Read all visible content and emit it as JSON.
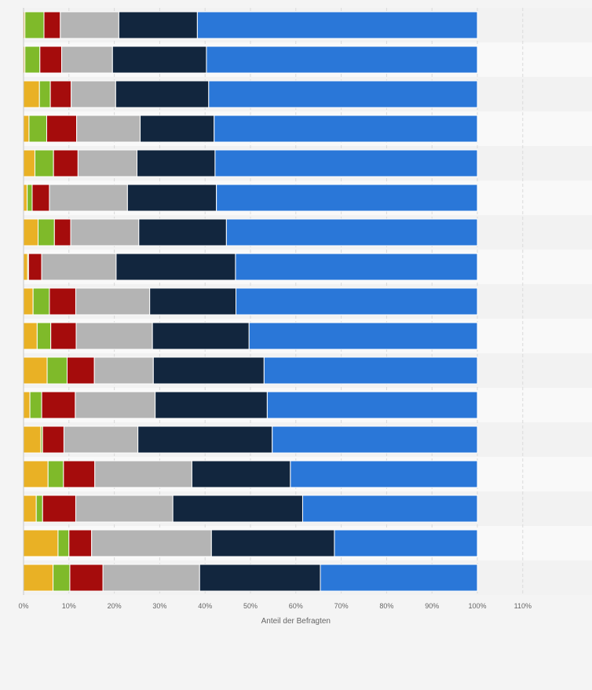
{
  "chart_data": {
    "type": "bar",
    "orientation": "horizontal",
    "stacked": true,
    "percent_stacked": true,
    "categories": [
      "",
      "",
      "",
      "",
      "",
      "",
      "",
      "",
      "",
      "",
      "",
      "",
      "",
      "",
      "",
      "",
      ""
    ],
    "series": [
      {
        "color": "#e9b125",
        "values": [
          0.3,
          0.3,
          3.5,
          1.2,
          2.5,
          0.8,
          3.2,
          0.9,
          2.1,
          3.0,
          5.2,
          1.4,
          3.8,
          5.4,
          2.8,
          7.6,
          6.5
        ]
      },
      {
        "color": "#7fba2a",
        "values": [
          4.2,
          3.3,
          2.4,
          3.9,
          4.1,
          1.1,
          3.6,
          0.2,
          3.6,
          3.0,
          4.4,
          2.6,
          0.4,
          3.4,
          1.4,
          2.4,
          3.7
        ]
      },
      {
        "color": "#a50c0c",
        "values": [
          3.6,
          4.8,
          4.6,
          6.6,
          5.4,
          3.8,
          3.6,
          2.9,
          5.8,
          5.6,
          6.0,
          7.4,
          4.7,
          6.9,
          7.3,
          5.0,
          7.3
        ]
      },
      {
        "color": "#b4b4b4",
        "values": [
          12.9,
          11.2,
          9.8,
          14.0,
          13.0,
          17.2,
          15.0,
          16.4,
          16.3,
          16.8,
          13.0,
          17.6,
          16.3,
          21.4,
          21.4,
          26.4,
          21.3
        ]
      },
      {
        "color": "#12263e",
        "values": [
          17.3,
          20.7,
          20.5,
          16.3,
          17.2,
          19.6,
          19.3,
          26.3,
          19.0,
          21.3,
          24.4,
          24.7,
          29.6,
          21.7,
          28.6,
          27.1,
          26.6
        ]
      },
      {
        "color": "#2a77d8",
        "values": [
          61.7,
          59.7,
          59.2,
          58.0,
          57.8,
          57.5,
          55.3,
          53.3,
          53.2,
          50.3,
          47.0,
          46.3,
          45.2,
          41.2,
          38.5,
          31.5,
          34.6
        ]
      }
    ],
    "xlim": [
      0,
      120
    ],
    "x_ticks": [
      "0%",
      "10%",
      "20%",
      "30%",
      "40%",
      "50%",
      "60%",
      "70%",
      "80%",
      "90%",
      "100%",
      "110%"
    ],
    "xlabel": "Anteil der Befragten",
    "ylabel": "",
    "title": "",
    "legend": "none",
    "grid": "vertical dashed"
  }
}
